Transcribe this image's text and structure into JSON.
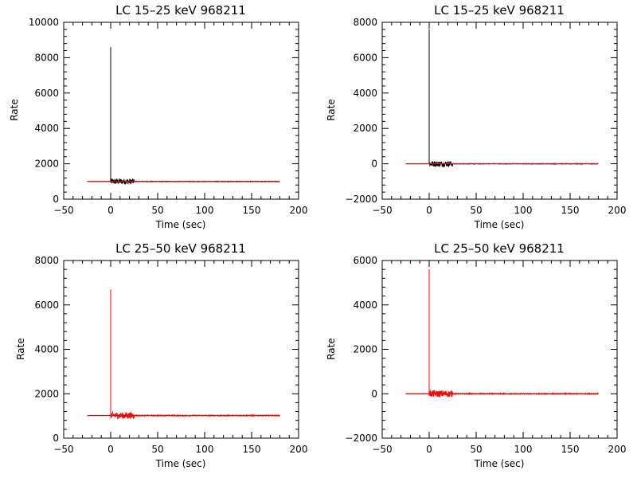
{
  "colors": {
    "background": "#ffffff",
    "axes": "#000000",
    "black_series": "#000000",
    "red_series": "#ff0000"
  },
  "chart_data": [
    {
      "type": "line",
      "title": "LC 15–25 keV  968211",
      "xlabel": "Time (sec)",
      "ylabel": "Rate",
      "xlim": [
        -50,
        200
      ],
      "ylim": [
        0,
        10000
      ],
      "xticks": [
        -50,
        0,
        50,
        100,
        150,
        200
      ],
      "yticks": [
        0,
        2000,
        4000,
        6000,
        8000,
        10000
      ],
      "xtick_labels": [
        "−50",
        "0",
        "50",
        "100",
        "150",
        "200"
      ],
      "ytick_labels": [
        "0",
        "2000",
        "4000",
        "6000",
        "8000",
        "10000"
      ],
      "grid": false,
      "series": [
        {
          "color": "black",
          "role": "light curve",
          "x_range": [
            -25,
            180
          ],
          "baseline": 1000,
          "peak": {
            "x": 0,
            "y": 8600
          },
          "noise": [
            [
              0,
              25,
              160
            ],
            [
              25,
              180,
              15
            ]
          ]
        },
        {
          "color": "red",
          "role": "background model",
          "x_range": [
            -25,
            180
          ],
          "baseline": 1000,
          "peak": null,
          "noise": [
            [
              -25,
              180,
              0
            ]
          ]
        }
      ]
    },
    {
      "type": "line",
      "title": "LC 15–25 keV  968211",
      "xlabel": "Time (sec)",
      "ylabel": "Rate",
      "xlim": [
        -50,
        200
      ],
      "ylim": [
        -2000,
        8000
      ],
      "xticks": [
        -50,
        0,
        50,
        100,
        150,
        200
      ],
      "yticks": [
        -2000,
        0,
        2000,
        4000,
        6000,
        8000
      ],
      "xtick_labels": [
        "−50",
        "0",
        "50",
        "100",
        "150",
        "200"
      ],
      "ytick_labels": [
        "−2000",
        "0",
        "2000",
        "4000",
        "6000",
        "8000"
      ],
      "grid": false,
      "series": [
        {
          "color": "black",
          "role": "background-subtracted light curve",
          "x_range": [
            -25,
            180
          ],
          "baseline": 0,
          "peak": {
            "x": 0,
            "y": 7600
          },
          "noise": [
            [
              0,
              25,
              160
            ],
            [
              25,
              180,
              15
            ]
          ]
        },
        {
          "color": "red",
          "role": "zero level",
          "x_range": [
            -25,
            180
          ],
          "baseline": 0,
          "peak": null,
          "noise": [
            [
              -25,
              180,
              0
            ]
          ]
        }
      ]
    },
    {
      "type": "line",
      "title": "LC 25–50 keV  968211",
      "xlabel": "Time (sec)",
      "ylabel": "Rate",
      "xlim": [
        -50,
        200
      ],
      "ylim": [
        0,
        8000
      ],
      "xticks": [
        -50,
        0,
        50,
        100,
        150,
        200
      ],
      "yticks": [
        0,
        2000,
        4000,
        6000,
        8000
      ],
      "xtick_labels": [
        "−50",
        "0",
        "50",
        "100",
        "150",
        "200"
      ],
      "ytick_labels": [
        "0",
        "2000",
        "4000",
        "6000",
        "8000"
      ],
      "grid": false,
      "series": [
        {
          "color": "black",
          "role": "background model",
          "x_range": [
            -25,
            180
          ],
          "baseline": 1020,
          "peak": null,
          "noise": [
            [
              -25,
              180,
              0
            ]
          ]
        },
        {
          "color": "red",
          "role": "light curve",
          "x_range": [
            -25,
            180
          ],
          "baseline": 1020,
          "peak": {
            "x": 0,
            "y": 6700
          },
          "noise": [
            [
              0,
              25,
              150
            ],
            [
              25,
              180,
              20
            ]
          ]
        }
      ]
    },
    {
      "type": "line",
      "title": "LC 25–50 keV  968211",
      "xlabel": "Time (sec)",
      "ylabel": "Rate",
      "xlim": [
        -50,
        200
      ],
      "ylim": [
        -2000,
        6000
      ],
      "xticks": [
        -50,
        0,
        50,
        100,
        150,
        200
      ],
      "yticks": [
        -2000,
        0,
        2000,
        4000,
        6000
      ],
      "xtick_labels": [
        "−50",
        "0",
        "50",
        "100",
        "150",
        "200"
      ],
      "ytick_labels": [
        "−2000",
        "0",
        "2000",
        "4000",
        "6000"
      ],
      "grid": false,
      "series": [
        {
          "color": "black",
          "role": "zero level",
          "x_range": [
            -25,
            180
          ],
          "baseline": 0,
          "peak": null,
          "noise": [
            [
              -25,
              180,
              0
            ]
          ]
        },
        {
          "color": "red",
          "role": "background-subtracted light curve",
          "x_range": [
            -25,
            180
          ],
          "baseline": 0,
          "peak": {
            "x": 0,
            "y": 5600
          },
          "noise": [
            [
              0,
              25,
              150
            ],
            [
              25,
              180,
              20
            ]
          ]
        }
      ]
    }
  ]
}
